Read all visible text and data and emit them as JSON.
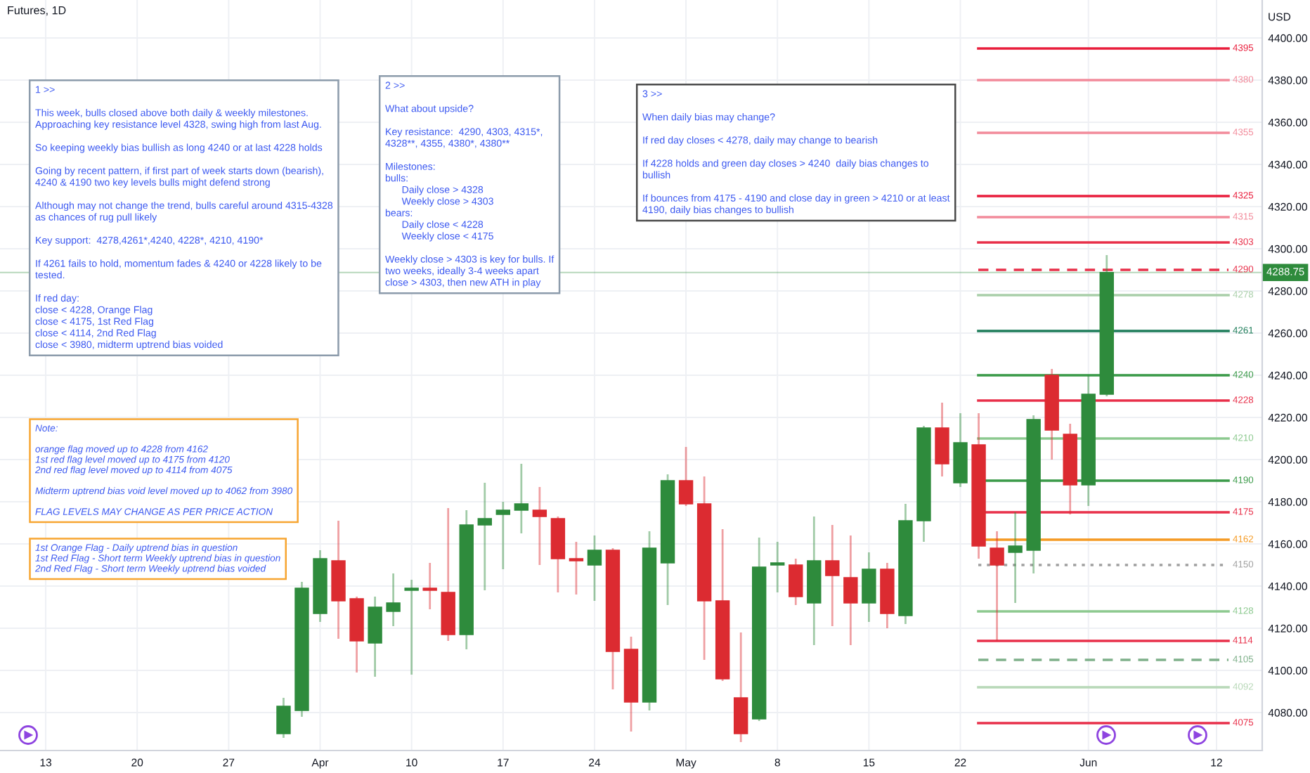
{
  "chart_data": {
    "type": "candlestick",
    "title": "Futures, 1D",
    "ylabel": "USD",
    "categories": [
      null,
      null,
      "13",
      null,
      null,
      null,
      null,
      "20",
      null,
      null,
      null,
      null,
      "27",
      null,
      null,
      null,
      null,
      "Apr",
      null,
      null,
      null,
      null,
      "10",
      null,
      null,
      null,
      null,
      "17",
      null,
      null,
      null,
      null,
      "24",
      null,
      null,
      null,
      null,
      "May",
      null,
      null,
      null,
      null,
      "8",
      null,
      null,
      null,
      null,
      "15",
      null,
      null,
      null,
      null,
      "22",
      null,
      null,
      null,
      null,
      null,
      null,
      "Jun",
      null,
      null,
      null,
      null,
      null,
      null,
      "12",
      null,
      null
    ],
    "ohlc": [
      null,
      null,
      null,
      null,
      null,
      null,
      null,
      null,
      null,
      null,
      null,
      null,
      null,
      null,
      null,
      [
        4070,
        4087,
        4068,
        4083
      ],
      [
        4081,
        4142,
        4078,
        4139
      ],
      [
        4127,
        4157,
        4123,
        4153
      ],
      [
        4152,
        4171,
        4115,
        4133
      ],
      [
        4134,
        4135,
        4099,
        4114
      ],
      [
        4113,
        4135,
        4097,
        4130
      ],
      [
        4128,
        4146,
        4121,
        4132
      ],
      [
        4138,
        4143,
        4098,
        4139
      ],
      [
        4139,
        4151,
        4129,
        4138
      ],
      [
        4137,
        4177,
        4114,
        4117
      ],
      [
        4117,
        4176,
        4110,
        4169
      ],
      [
        4169,
        4189,
        4138,
        4172
      ],
      [
        4174,
        4180,
        4148,
        4176
      ],
      [
        4176,
        4198,
        4165,
        4179
      ],
      [
        4176,
        4187,
        4150,
        4173
      ],
      [
        4172,
        4173,
        4137,
        4153
      ],
      [
        4153,
        4161,
        4136,
        4152
      ],
      [
        4150,
        4164,
        4133,
        4157
      ],
      [
        4157,
        4158,
        4091,
        4109
      ],
      [
        4110,
        4116,
        4071,
        4085
      ],
      [
        4085,
        4166,
        4081,
        4158
      ],
      [
        4151,
        4193,
        4131,
        4190
      ],
      [
        4190,
        4206,
        4178,
        4179
      ],
      [
        4179,
        4192,
        4105,
        4133
      ],
      [
        4133,
        4167,
        4095,
        4096
      ],
      [
        4087,
        4118,
        4066,
        4070
      ],
      [
        4077,
        4163,
        4076,
        4149
      ],
      [
        4150,
        4161,
        4137,
        4151
      ],
      [
        4150,
        4153,
        4131,
        4135
      ],
      [
        4132,
        4173,
        4112,
        4152
      ],
      [
        4152,
        4169,
        4121,
        4145
      ],
      [
        4144,
        4164,
        4112,
        4132
      ],
      [
        4132,
        4156,
        4123,
        4148
      ],
      [
        4148,
        4151,
        4120,
        4127
      ],
      [
        4126,
        4179,
        4122,
        4171
      ],
      [
        4171,
        4216,
        4161,
        4215
      ],
      [
        4215,
        4227,
        4192,
        4198
      ],
      [
        4189,
        4222,
        4187,
        4208
      ],
      [
        4207,
        4222,
        4153,
        4159
      ],
      [
        4158,
        4166,
        4114,
        4150
      ],
      [
        4156,
        4175,
        4132,
        4159
      ],
      [
        4157,
        4221,
        4146,
        4219
      ],
      [
        4240,
        4243,
        4200,
        4214
      ],
      [
        4212,
        4217,
        4174,
        4188
      ],
      [
        4188,
        4240,
        4178,
        4231
      ],
      [
        4231,
        4297,
        4230,
        4288.75
      ],
      null,
      null,
      null,
      null,
      null,
      null,
      null,
      null
    ],
    "colors": [
      null,
      null,
      null,
      null,
      null,
      null,
      null,
      null,
      null,
      null,
      null,
      null,
      null,
      null,
      null,
      "#2e8b3c",
      "#2e8b3c",
      "#2e8b3c",
      "#dc2b31",
      "#dc2b31",
      "#2e8b3c",
      "#2e8b3c",
      "#2e8b3c",
      "#dc2b31",
      "#dc2b31",
      "#2e8b3c",
      "#2e8b3c",
      "#2e8b3c",
      "#2e8b3c",
      "#dc2b31",
      "#dc2b31",
      "#dc2b31",
      "#2e8b3c",
      "#dc2b31",
      "#dc2b31",
      "#2e8b3c",
      "#2e8b3c",
      "#dc2b31",
      "#dc2b31",
      "#dc2b31",
      "#dc2b31",
      "#2e8b3c",
      "#2e8b3c",
      "#dc2b31",
      "#2e8b3c",
      "#dc2b31",
      "#dc2b31",
      "#2e8b3c",
      "#dc2b31",
      "#2e8b3c",
      "#2e8b3c",
      "#dc2b31",
      "#2e8b3c",
      "#dc2b31",
      "#dc2b31",
      "#2e8b3c",
      "#2e8b3c",
      "#dc2b31",
      "#dc2b31",
      "#2e8b3c",
      "#2e8b3c",
      null,
      null,
      null,
      null,
      null,
      null,
      null,
      null
    ],
    "ylim": [
      4062,
      4418
    ],
    "yticks": [
      {
        "value": 4080,
        "label": "4080.00"
      },
      {
        "value": 4100,
        "label": "4100.00"
      },
      {
        "value": 4120,
        "label": "4120.00"
      },
      {
        "value": 4140,
        "label": "4140.00"
      },
      {
        "value": 4160,
        "label": "4160.00"
      },
      {
        "value": 4180,
        "label": "4180.00"
      },
      {
        "value": 4200,
        "label": "4200.00"
      },
      {
        "value": 4220,
        "label": "4220.00"
      },
      {
        "value": 4240,
        "label": "4240.00"
      },
      {
        "value": 4260,
        "label": "4260.00"
      },
      {
        "value": 4280,
        "label": "4280.00"
      },
      {
        "value": 4300,
        "label": "4300.00"
      },
      {
        "value": 4320,
        "label": "4320.00"
      },
      {
        "value": 4340,
        "label": "4340.00"
      },
      {
        "value": 4360,
        "label": "4360.00"
      },
      {
        "value": 4380,
        "label": "4380.00"
      },
      {
        "value": 4400,
        "label": "4400.00"
      }
    ],
    "grid": true,
    "ref_lines": [
      {
        "axis": "y",
        "value": 4395,
        "label": "4395",
        "color": "#e91e3c",
        "line_style": "solid"
      },
      {
        "axis": "y",
        "value": 4380,
        "label": "4380",
        "color": "#f28b9b",
        "line_style": "solid"
      },
      {
        "axis": "y",
        "value": 4355,
        "label": "4355",
        "color": "#f28b9b",
        "line_style": "solid"
      },
      {
        "axis": "y",
        "value": 4325,
        "label": "4325",
        "color": "#e91e3c",
        "line_style": "solid"
      },
      {
        "axis": "y",
        "value": 4315,
        "label": "4315",
        "color": "#f28b9b",
        "line_style": "solid"
      },
      {
        "axis": "y",
        "value": 4303,
        "label": "4303",
        "color": "#e8304a",
        "line_style": "solid"
      },
      {
        "axis": "y",
        "value": 4290,
        "label": "4290",
        "color": "#e8304a",
        "line_style": "dashed"
      },
      {
        "axis": "y",
        "value": 4288.75,
        "label": "4288.75",
        "color": "#2e8b3c",
        "line_style": "solid"
      },
      {
        "axis": "y",
        "value": 4278,
        "label": "4278",
        "color": "#a9cfa9",
        "line_style": "solid"
      },
      {
        "axis": "y",
        "value": 4261,
        "label": "4261",
        "color": "#1e7d5a",
        "line_style": "solid"
      },
      {
        "axis": "y",
        "value": 4240,
        "label": "4240",
        "color": "#3a9a48",
        "line_style": "solid"
      },
      {
        "axis": "y",
        "value": 4228,
        "label": "4228",
        "color": "#e8304a",
        "line_style": "solid"
      },
      {
        "axis": "y",
        "value": 4210,
        "label": "4210",
        "color": "#8cc98f",
        "line_style": "solid"
      },
      {
        "axis": "y",
        "value": 4190,
        "label": "4190",
        "color": "#3a9a48",
        "line_style": "solid"
      },
      {
        "axis": "y",
        "value": 4175,
        "label": "4175",
        "color": "#e8304a",
        "line_style": "solid"
      },
      {
        "axis": "y",
        "value": 4162,
        "label": "4162",
        "color": "#f59a23",
        "line_style": "solid"
      },
      {
        "axis": "y",
        "value": 4150,
        "label": "4150",
        "color": "#a0a0a0",
        "line_style": "dotted"
      },
      {
        "axis": "y",
        "value": 4128,
        "label": "4128",
        "color": "#8cc98f",
        "line_style": "solid"
      },
      {
        "axis": "y",
        "value": 4114,
        "label": "4114",
        "color": "#e8304a",
        "line_style": "solid"
      },
      {
        "axis": "y",
        "value": 4105,
        "label": "4105",
        "color": "#7fb08a",
        "line_style": "dashed"
      },
      {
        "axis": "y",
        "value": 4092,
        "label": "4092",
        "color": "#b8d8b8",
        "line_style": "solid"
      },
      {
        "axis": "y",
        "value": 4075,
        "label": "4075",
        "color": "#e8304a",
        "line_style": "solid"
      }
    ],
    "annotations": [
      "1 >>\n\nThis week, bulls closed above both daily & weekly milestones.\nApproaching key resistance level 4328, swing high from last Aug.\n\nSo keeping weekly bias bullish as long 4240 or at last 4228 holds\n\nGoing by recent pattern, if first part of week starts down (bearish),\n4240 & 4190 two key levels bulls might defend strong\n\nAlthough may not change the trend, bulls careful around 4315-4328\nas chances of rug pull likely\n\nKey support:  4278,4261*,4240, 4228*, 4210, 4190*\n\nIf 4261 fails to hold, momentum fades & 4240 or 4228 likely to be\ntested.\n\nIf red day:\nclose < 4228, Orange Flag\nclose < 4175, 1st Red Flag\nclose < 4114, 2nd Red Flag\nclose < 3980, midterm uptrend bias voided",
      "2 >>\n\nWhat about upside?\n\nKey resistance:  4290, 4303, 4315*,\n4328**, 4355, 4380*, 4380**\n\nMilestones:\nbulls:\n      Daily close > 4328\n      Weekly close > 4303\nbears:\n      Daily close < 4228\n      Weekly close < 4175\n\nWeekly close > 4303 is key for bulls. If\ntwo weeks, ideally 3-4 weeks apart\nclose > 4303, then new ATH in play",
      "3 >>\n\nWhen daily bias may change?\n\nIf red day closes < 4278, daily may change to bearish\n\nIf 4228 holds and green day closes > 4240  daily bias changes to\nbullish\n\nIf bounces from 4175 - 4190 and close day in green > 4210 or at least\n4190, daily bias changes to bullish",
      "Note:\n\norange flag moved up to 4228 from 4162\n1st red flag level moved up to 4175 from 4120\n2nd red flag level moved up to 4114 from 4075\n\nMidterm uptrend bias void level moved up to 4062 from 3980\n\nFLAG LEVELS MAY CHANGE AS PER PRICE ACTION",
      "1st Orange Flag - Daily uptrend bias in question\n1st Red Flag - Short term Weekly uptrend bias in question\n2nd Red Flag - Short term Weekly uptrend bias voided"
    ]
  }
}
